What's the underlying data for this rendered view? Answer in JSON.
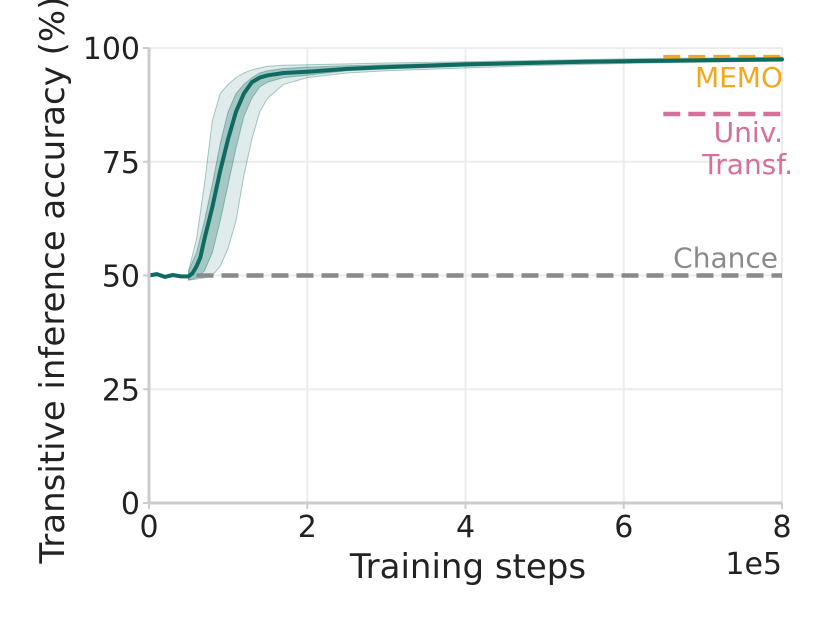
{
  "chart_data": {
    "type": "line",
    "xlabel": "Training steps",
    "ylabel": "Transitive inference accuracy (%)",
    "x_multiplier_label": "1e5",
    "xlim": [
      0,
      8
    ],
    "ylim": [
      0,
      100
    ],
    "xticks": [
      0,
      2,
      4,
      6,
      8
    ],
    "yticks": [
      0,
      25,
      50,
      75,
      100
    ],
    "xtick_labels": [
      "0",
      "2",
      "4",
      "6",
      "8"
    ],
    "ytick_labels": [
      "0",
      "25",
      "50",
      "75",
      "100"
    ],
    "grid": true,
    "series": [
      {
        "color": "#0f6b62",
        "x": [
          0,
          0.1,
          0.2,
          0.3,
          0.4,
          0.5,
          0.55,
          0.6,
          0.65,
          0.7,
          0.8,
          0.9,
          1.0,
          1.1,
          1.2,
          1.3,
          1.4,
          1.5,
          1.7,
          2.0,
          2.5,
          3.0,
          3.5,
          4.0,
          4.5,
          5.0,
          5.5,
          6.0,
          6.5,
          7.0,
          7.5,
          8.0
        ],
        "y": [
          50,
          50.3,
          49.7,
          50.1,
          49.8,
          49.8,
          50.5,
          52,
          54,
          58,
          65,
          73,
          80,
          86,
          90,
          92.5,
          93.5,
          94,
          94.5,
          94.8,
          95.4,
          95.8,
          96.1,
          96.4,
          96.6,
          96.8,
          97.0,
          97.1,
          97.2,
          97.3,
          97.4,
          97.5
        ]
      }
    ],
    "bands": [
      {
        "color": "#0f6b62",
        "opacity": 0.28,
        "x": [
          0.5,
          0.6,
          0.7,
          0.8,
          0.9,
          1.0,
          1.1,
          1.2,
          1.3,
          1.4,
          1.5,
          1.7,
          2.0,
          2.5,
          3.0,
          4.0,
          5.0,
          6.0,
          7.0,
          8.0
        ],
        "lower": [
          49,
          49.5,
          51,
          55,
          62,
          70,
          78,
          85,
          89,
          91.5,
          92.5,
          93.5,
          94,
          95,
          95.4,
          96,
          96.5,
          96.8,
          97,
          97.2
        ],
        "upper": [
          51,
          55,
          62,
          70,
          79,
          86,
          90,
          92,
          93.5,
          94.5,
          95,
          95.5,
          95.8,
          96.1,
          96.3,
          96.8,
          97.1,
          97.4,
          97.6,
          97.8
        ]
      },
      {
        "color": "#0f6b62",
        "opacity": 0.13,
        "x": [
          0.5,
          0.6,
          0.7,
          0.8,
          0.9,
          1.0,
          1.1,
          1.2,
          1.3,
          1.4,
          1.5,
          1.7,
          2.0,
          2.5,
          3.0,
          4.0,
          5.0,
          6.0,
          7.0,
          8.0
        ],
        "lower": [
          49,
          49.2,
          49.5,
          50,
          52,
          56,
          62,
          72,
          80,
          86,
          89,
          92,
          93.5,
          94.5,
          95,
          95.6,
          96.2,
          96.6,
          96.9,
          97.1
        ],
        "upper": [
          51,
          58,
          70,
          84,
          90,
          92,
          93.5,
          94.5,
          95.2,
          95.6,
          96,
          96.2,
          96.3,
          96.5,
          96.7,
          97,
          97.3,
          97.6,
          97.8,
          98.0
        ]
      }
    ],
    "reference_lines": [
      {
        "label": "MEMO",
        "y": 98,
        "x_start": 6.5,
        "x_end": 8,
        "color": "#f2a81d"
      },
      {
        "label_lines": [
          "Univ.",
          "Transf."
        ],
        "y": 85.5,
        "x_start": 6.5,
        "x_end": 8,
        "color": "#d4709a"
      },
      {
        "label": "Chance",
        "y": 50,
        "x_start": 0.6,
        "x_end": 8,
        "color": "#8a8a8a"
      }
    ]
  }
}
